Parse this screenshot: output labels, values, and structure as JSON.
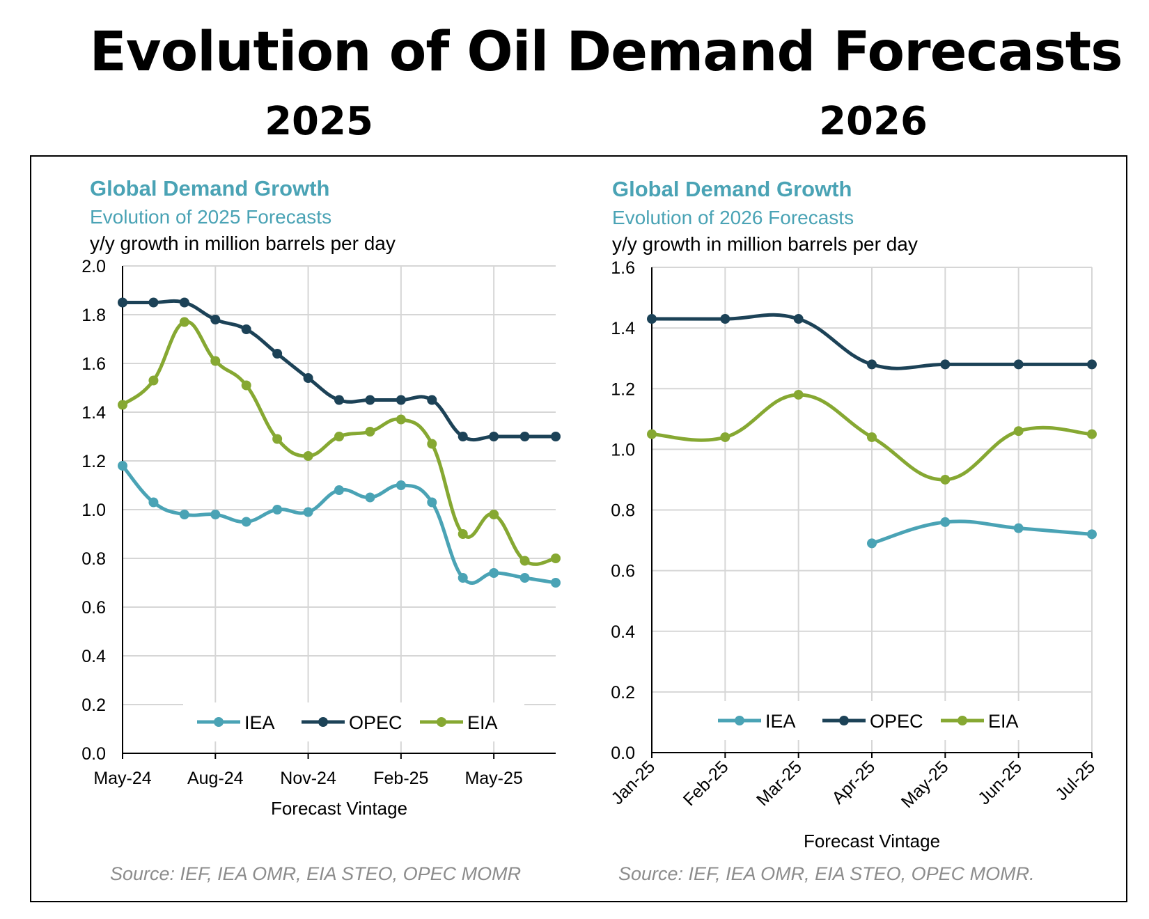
{
  "title": "Evolution of Oil Demand Forecasts",
  "year_labels": [
    "2025",
    "2026"
  ],
  "colors": {
    "IEA": "#4aa3b5",
    "OPEC": "#1c4257",
    "EIA": "#86a832",
    "chart_title": "#4aa3b5",
    "grid": "#d6d6d6"
  },
  "chart_data": [
    {
      "type": "line",
      "title": "Global Demand Growth",
      "subtitle": "Evolution of 2025 Forecasts",
      "units": "y/y growth in million barrels per day",
      "xlabel": "Forecast Vintage",
      "ylim": [
        0,
        2.0
      ],
      "yticks": [
        "0.0",
        "0.2",
        "0.4",
        "0.6",
        "0.8",
        "1.0",
        "1.2",
        "1.4",
        "1.6",
        "1.8",
        "2.0"
      ],
      "x": [
        "May-24",
        "Jun-24",
        "Jul-24",
        "Aug-24",
        "Sep-24",
        "Oct-24",
        "Nov-24",
        "Dec-24",
        "Jan-25",
        "Feb-25",
        "Mar-25",
        "Apr-25",
        "May-25",
        "Jun-25",
        "Jul-25"
      ],
      "xtick_labels": [
        "May-24",
        "Aug-24",
        "Nov-24",
        "Feb-25",
        "May-25"
      ],
      "xtick_indices": [
        0,
        3,
        6,
        9,
        12
      ],
      "grid": true,
      "legend_position": "bottom",
      "series": [
        {
          "name": "IEA",
          "values": [
            1.18,
            1.03,
            0.98,
            0.98,
            0.95,
            1.0,
            0.99,
            1.08,
            1.05,
            1.1,
            1.03,
            0.72,
            0.74,
            0.72,
            0.7
          ]
        },
        {
          "name": "OPEC",
          "values": [
            1.85,
            1.85,
            1.85,
            1.78,
            1.74,
            1.64,
            1.54,
            1.45,
            1.45,
            1.45,
            1.45,
            1.3,
            1.3,
            1.3,
            1.3
          ]
        },
        {
          "name": "EIA",
          "values": [
            1.43,
            1.53,
            1.77,
            1.61,
            1.51,
            1.29,
            1.22,
            1.3,
            1.32,
            1.37,
            1.27,
            0.9,
            0.98,
            0.79,
            0.8
          ]
        }
      ],
      "source": "Source: IEF, IEA OMR, EIA STEO, OPEC MOMR"
    },
    {
      "type": "line",
      "title": "Global Demand Growth",
      "subtitle": "Evolution of 2026 Forecasts",
      "units": "y/y growth in million barrels per day",
      "xlabel": "Forecast Vintage",
      "ylim": [
        0,
        1.6
      ],
      "yticks": [
        "0.0",
        "0.2",
        "0.4",
        "0.6",
        "0.8",
        "1.0",
        "1.2",
        "1.4",
        "1.6"
      ],
      "x": [
        "Jan-25",
        "Feb-25",
        "Mar-25",
        "Apr-25",
        "May-25",
        "Jun-25",
        "Jul-25"
      ],
      "xtick_labels": [
        "Jan-25",
        "Feb-25",
        "Mar-25",
        "Apr-25",
        "May-25",
        "Jun-25",
        "Jul-25"
      ],
      "xtick_indices": [
        0,
        1,
        2,
        3,
        4,
        5,
        6
      ],
      "grid": true,
      "legend_position": "bottom",
      "series": [
        {
          "name": "IEA",
          "values": [
            null,
            null,
            null,
            0.69,
            0.76,
            0.74,
            0.72
          ]
        },
        {
          "name": "OPEC",
          "values": [
            1.43,
            1.43,
            1.43,
            1.28,
            1.28,
            1.28,
            1.28
          ]
        },
        {
          "name": "EIA",
          "values": [
            1.05,
            1.04,
            1.18,
            1.04,
            0.9,
            1.06,
            1.05
          ]
        }
      ],
      "source": "Source: IEF, IEA OMR, EIA STEO, OPEC MOMR."
    }
  ]
}
